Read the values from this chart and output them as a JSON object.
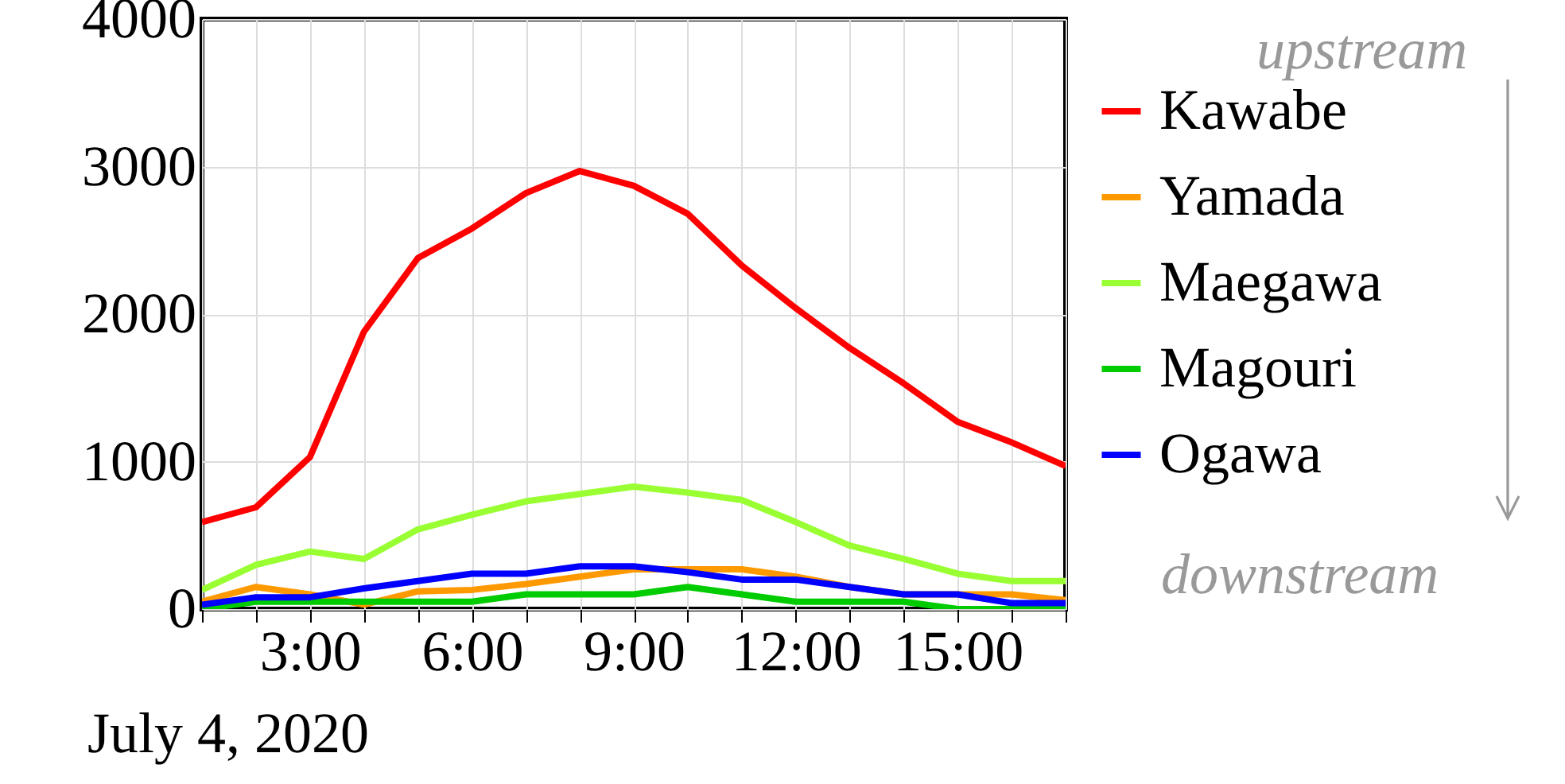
{
  "chart_data": {
    "type": "line",
    "x": [
      1,
      2,
      3,
      4,
      5,
      6,
      7,
      8,
      9,
      10,
      11,
      12,
      13,
      14,
      15,
      16,
      17
    ],
    "xlim": [
      1,
      17
    ],
    "xticks": [
      {
        "value": 1,
        "label": null
      },
      {
        "value": 2,
        "label": null
      },
      {
        "value": 3,
        "label": "3:00"
      },
      {
        "value": 4,
        "label": null
      },
      {
        "value": 5,
        "label": null
      },
      {
        "value": 6,
        "label": "6:00"
      },
      {
        "value": 7,
        "label": null
      },
      {
        "value": 8,
        "label": null
      },
      {
        "value": 9,
        "label": "9:00"
      },
      {
        "value": 10,
        "label": null
      },
      {
        "value": 11,
        "label": null
      },
      {
        "value": 12,
        "label": "12:00"
      },
      {
        "value": 13,
        "label": null
      },
      {
        "value": 14,
        "label": null
      },
      {
        "value": 15,
        "label": "15:00"
      },
      {
        "value": 16,
        "label": null
      },
      {
        "value": 17,
        "label": null
      }
    ],
    "ylim": [
      0,
      4000
    ],
    "yticks": [
      0,
      1000,
      2000,
      3000,
      4000
    ],
    "grid": true,
    "legend": "right",
    "marker": "none",
    "line_style": "solid",
    "series": [
      {
        "name": "Kawabe",
        "color": "#ff0000",
        "values": [
          590,
          690,
          1030,
          1880,
          2380,
          2580,
          2820,
          2970,
          2870,
          2680,
          2330,
          2040,
          1770,
          1530,
          1270,
          1130,
          970
        ]
      },
      {
        "name": "Yamada",
        "color": "#ff9900",
        "values": [
          50,
          150,
          100,
          30,
          120,
          130,
          170,
          220,
          270,
          270,
          270,
          220,
          150,
          100,
          100,
          100,
          60
        ]
      },
      {
        "name": "Maegawa",
        "color": "#99ff33",
        "values": [
          130,
          300,
          390,
          340,
          540,
          640,
          730,
          780,
          830,
          790,
          740,
          590,
          430,
          340,
          240,
          190,
          190
        ]
      },
      {
        "name": "Magouri",
        "color": "#00cc00",
        "values": [
          0,
          50,
          50,
          50,
          50,
          50,
          100,
          100,
          100,
          150,
          100,
          50,
          50,
          50,
          0,
          0,
          0
        ]
      },
      {
        "name": "Ogawa",
        "color": "#0000ff",
        "values": [
          30,
          80,
          80,
          140,
          190,
          240,
          240,
          290,
          290,
          250,
          200,
          200,
          150,
          100,
          100,
          40,
          40
        ]
      }
    ],
    "annotations": [
      "July 4, 2020",
      "upstream",
      "downstream"
    ]
  }
}
